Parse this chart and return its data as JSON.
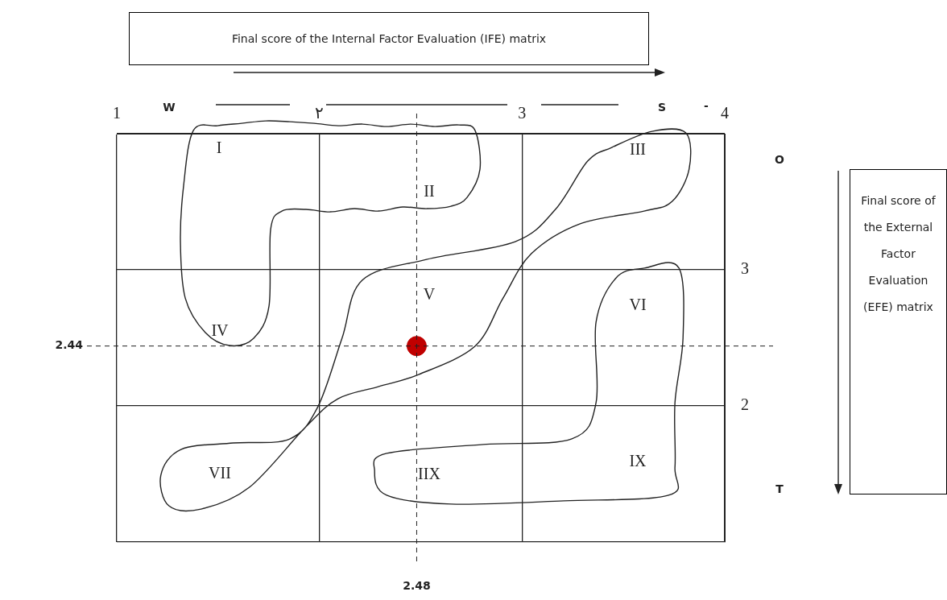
{
  "chart_data": {
    "type": "scatter",
    "title": "Final score of the Internal Factor Evaluation (IFE) matrix",
    "ylabel": "Final score of the External Factor Evaluation (EFE) matrix",
    "x": [
      2.48
    ],
    "values": [
      2.44
    ],
    "color": "#c00000",
    "marker": "circle",
    "xlim": [
      1,
      4
    ],
    "xticks": [
      1,
      {
        "value": 2,
        "label": "٢"
      },
      3,
      4
    ],
    "ylim": [
      1,
      4
    ],
    "yticks": [
      {
        "value": 1,
        "label": null
      },
      2,
      3,
      {
        "value": 4,
        "label": null
      }
    ],
    "grid": true,
    "legend": false,
    "ref_lines": [
      {
        "axis": "x",
        "value": 2.48,
        "label": "2.48",
        "line_style": "dashed"
      },
      {
        "axis": "y",
        "value": 2.44,
        "label": "2.44",
        "line_style": "dashed"
      }
    ],
    "annotations": [
      "I",
      "II",
      "III",
      "IV",
      "V",
      "VI",
      "VII",
      "IIX",
      "IX",
      "W",
      "S",
      "O",
      "T",
      "-"
    ]
  }
}
